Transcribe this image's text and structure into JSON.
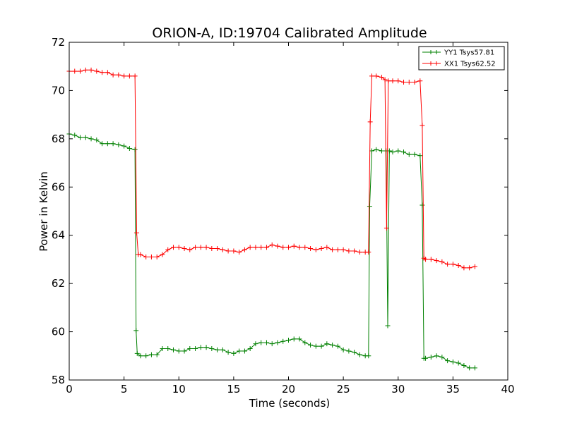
{
  "chart_data": {
    "type": "line",
    "title": "ORION-A, ID:19704 Calibrated Amplitude",
    "xlabel": "Time (seconds)",
    "ylabel": "Power in Kelvin",
    "xlim": [
      0,
      40
    ],
    "ylim": [
      58,
      72
    ],
    "xticks": [
      "0",
      "5",
      "10",
      "15",
      "20",
      "25",
      "30",
      "35",
      "40"
    ],
    "yticks": [
      "58",
      "60",
      "62",
      "64",
      "66",
      "68",
      "70",
      "72"
    ],
    "grid": false,
    "legend_position": "top-right",
    "marker": "+",
    "series": [
      {
        "name": "YY1 Tsys57.81",
        "color": "#008000",
        "points": [
          [
            0,
            68.2
          ],
          [
            0.5,
            68.15
          ],
          [
            1,
            68.05
          ],
          [
            1.5,
            68.05
          ],
          [
            2,
            68.0
          ],
          [
            2.5,
            67.95
          ],
          [
            3,
            67.8
          ],
          [
            3.5,
            67.8
          ],
          [
            4,
            67.8
          ],
          [
            4.5,
            67.75
          ],
          [
            5,
            67.7
          ],
          [
            5.5,
            67.6
          ],
          [
            6.0,
            67.55
          ],
          [
            6.1,
            60.05
          ],
          [
            6.2,
            59.1
          ],
          [
            6.5,
            59.0
          ],
          [
            7,
            59.0
          ],
          [
            7.5,
            59.05
          ],
          [
            8,
            59.05
          ],
          [
            8.5,
            59.3
          ],
          [
            9,
            59.3
          ],
          [
            9.5,
            59.25
          ],
          [
            10,
            59.2
          ],
          [
            10.5,
            59.2
          ],
          [
            11,
            59.3
          ],
          [
            11.5,
            59.3
          ],
          [
            12,
            59.35
          ],
          [
            12.5,
            59.35
          ],
          [
            13,
            59.3
          ],
          [
            13.5,
            59.25
          ],
          [
            14,
            59.25
          ],
          [
            14.5,
            59.15
          ],
          [
            15,
            59.1
          ],
          [
            15.5,
            59.2
          ],
          [
            16,
            59.2
          ],
          [
            16.5,
            59.3
          ],
          [
            17,
            59.5
          ],
          [
            17.5,
            59.55
          ],
          [
            18,
            59.55
          ],
          [
            18.5,
            59.5
          ],
          [
            19,
            59.55
          ],
          [
            19.5,
            59.6
          ],
          [
            20,
            59.65
          ],
          [
            20.5,
            59.7
          ],
          [
            21,
            59.7
          ],
          [
            21.5,
            59.55
          ],
          [
            22,
            59.45
          ],
          [
            22.5,
            59.4
          ],
          [
            23,
            59.4
          ],
          [
            23.5,
            59.5
          ],
          [
            24,
            59.45
          ],
          [
            24.5,
            59.4
          ],
          [
            25,
            59.25
          ],
          [
            25.5,
            59.2
          ],
          [
            26,
            59.15
          ],
          [
            26.5,
            59.05
          ],
          [
            27,
            59.0
          ],
          [
            27.3,
            59.0
          ],
          [
            27.4,
            65.2
          ],
          [
            27.6,
            67.5
          ],
          [
            28,
            67.55
          ],
          [
            28.5,
            67.5
          ],
          [
            28.9,
            67.5
          ],
          [
            29.05,
            60.25
          ],
          [
            29.2,
            67.5
          ],
          [
            29.5,
            67.45
          ],
          [
            30,
            67.5
          ],
          [
            30.5,
            67.45
          ],
          [
            31,
            67.35
          ],
          [
            31.5,
            67.35
          ],
          [
            32.0,
            67.3
          ],
          [
            32.2,
            65.25
          ],
          [
            32.35,
            58.9
          ],
          [
            32.5,
            58.9
          ],
          [
            33,
            58.95
          ],
          [
            33.5,
            59.0
          ],
          [
            34,
            58.95
          ],
          [
            34.5,
            58.8
          ],
          [
            35,
            58.75
          ],
          [
            35.5,
            58.7
          ],
          [
            36,
            58.6
          ],
          [
            36.5,
            58.5
          ],
          [
            37,
            58.5
          ]
        ]
      },
      {
        "name": "XX1 Tsys62.52",
        "color": "#ff0000",
        "points": [
          [
            0,
            70.8
          ],
          [
            0.5,
            70.8
          ],
          [
            1,
            70.8
          ],
          [
            1.5,
            70.85
          ],
          [
            2,
            70.85
          ],
          [
            2.5,
            70.8
          ],
          [
            3,
            70.75
          ],
          [
            3.5,
            70.75
          ],
          [
            4,
            70.65
          ],
          [
            4.5,
            70.65
          ],
          [
            5,
            70.6
          ],
          [
            5.5,
            70.6
          ],
          [
            6.0,
            70.6
          ],
          [
            6.15,
            64.1
          ],
          [
            6.3,
            63.2
          ],
          [
            6.5,
            63.2
          ],
          [
            7,
            63.1
          ],
          [
            7.5,
            63.1
          ],
          [
            8,
            63.1
          ],
          [
            8.5,
            63.2
          ],
          [
            9,
            63.4
          ],
          [
            9.5,
            63.5
          ],
          [
            10,
            63.5
          ],
          [
            10.5,
            63.45
          ],
          [
            11,
            63.4
          ],
          [
            11.5,
            63.5
          ],
          [
            12,
            63.5
          ],
          [
            12.5,
            63.5
          ],
          [
            13,
            63.45
          ],
          [
            13.5,
            63.45
          ],
          [
            14,
            63.4
          ],
          [
            14.5,
            63.35
          ],
          [
            15,
            63.35
          ],
          [
            15.5,
            63.3
          ],
          [
            16,
            63.4
          ],
          [
            16.5,
            63.5
          ],
          [
            17,
            63.5
          ],
          [
            17.5,
            63.5
          ],
          [
            18,
            63.5
          ],
          [
            18.5,
            63.6
          ],
          [
            19,
            63.55
          ],
          [
            19.5,
            63.5
          ],
          [
            20,
            63.5
          ],
          [
            20.5,
            63.55
          ],
          [
            21,
            63.5
          ],
          [
            21.5,
            63.5
          ],
          [
            22,
            63.45
          ],
          [
            22.5,
            63.4
          ],
          [
            23,
            63.45
          ],
          [
            23.5,
            63.5
          ],
          [
            24,
            63.4
          ],
          [
            24.5,
            63.4
          ],
          [
            25,
            63.4
          ],
          [
            25.5,
            63.35
          ],
          [
            26,
            63.35
          ],
          [
            26.5,
            63.3
          ],
          [
            27,
            63.3
          ],
          [
            27.3,
            63.3
          ],
          [
            27.45,
            68.7
          ],
          [
            27.6,
            70.6
          ],
          [
            28,
            70.6
          ],
          [
            28.5,
            70.55
          ],
          [
            28.8,
            70.45
          ],
          [
            28.95,
            64.3
          ],
          [
            29.1,
            70.4
          ],
          [
            29.5,
            70.4
          ],
          [
            30,
            70.4
          ],
          [
            30.5,
            70.35
          ],
          [
            31,
            70.35
          ],
          [
            31.5,
            70.35
          ],
          [
            32.0,
            70.4
          ],
          [
            32.2,
            68.55
          ],
          [
            32.35,
            63.05
          ],
          [
            32.5,
            63.0
          ],
          [
            33,
            63.0
          ],
          [
            33.5,
            62.95
          ],
          [
            34,
            62.9
          ],
          [
            34.5,
            62.8
          ],
          [
            35,
            62.8
          ],
          [
            35.5,
            62.75
          ],
          [
            36,
            62.65
          ],
          [
            36.5,
            62.65
          ],
          [
            37,
            62.7
          ]
        ]
      }
    ]
  }
}
